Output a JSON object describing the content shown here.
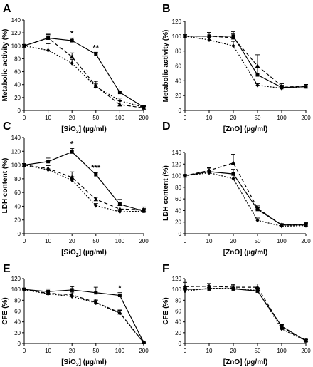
{
  "chart_data": [
    {
      "panel": "A",
      "type": "line",
      "x": [
        "0",
        "10",
        "20",
        "50",
        "100",
        "200"
      ],
      "xlabel": [
        "[SiO",
        "2",
        "] (µg/ml)"
      ],
      "ylabel": "Metabolic activity (%)",
      "ylim": [
        0,
        140
      ],
      "yticks": [
        "0",
        "20",
        "40",
        "60",
        "80",
        "100",
        "120",
        "140"
      ],
      "series": [
        {
          "style": "solid-square",
          "values": [
            100,
            112,
            108,
            87,
            28,
            5
          ],
          "errors": [
            2,
            6,
            4,
            3,
            10,
            2
          ]
        },
        {
          "style": "dash-triangle",
          "values": [
            100,
            112,
            83,
            38,
            9,
            4
          ],
          "errors": [
            2,
            5,
            6,
            7,
            6,
            2
          ]
        },
        {
          "style": "dot-diamond",
          "values": [
            100,
            93,
            73,
            37,
            15,
            5
          ],
          "errors": [
            2,
            10,
            6,
            4,
            4,
            2
          ]
        }
      ],
      "annotations": [
        {
          "x_index": 2,
          "text": "*"
        },
        {
          "x_index": 3,
          "text": "**"
        }
      ]
    },
    {
      "panel": "B",
      "type": "line",
      "x": [
        "0",
        "10",
        "20",
        "50",
        "100",
        "200"
      ],
      "xlabel": [
        "[ZnO] (µg/ml)"
      ],
      "ylabel": "Metabolic activity (%)",
      "ylim": [
        0,
        120
      ],
      "yticks": [
        "0",
        "20",
        "40",
        "60",
        "80",
        "100",
        "120"
      ],
      "series": [
        {
          "style": "solid-square",
          "values": [
            100,
            100,
            100,
            48,
            31,
            32
          ],
          "errors": [
            2,
            5,
            6,
            10,
            3,
            3
          ]
        },
        {
          "style": "dash-triangle",
          "values": [
            100,
            100,
            98,
            60,
            33,
            32
          ],
          "errors": [
            2,
            5,
            5,
            15,
            3,
            3
          ]
        },
        {
          "style": "dot-diamond",
          "values": [
            100,
            95,
            87,
            34,
            30,
            32
          ],
          "errors": [
            2,
            5,
            6,
            2,
            2,
            3
          ]
        }
      ],
      "annotations": []
    },
    {
      "panel": "C",
      "type": "line",
      "x": [
        "0",
        "10",
        "20",
        "50",
        "100",
        "200"
      ],
      "xlabel": [
        "[SiO",
        "2",
        "] (µg/ml)"
      ],
      "ylabel": "LDH content (%)",
      "ylim": [
        0,
        140
      ],
      "yticks": [
        "0",
        "20",
        "40",
        "60",
        "80",
        "100",
        "120",
        "140"
      ],
      "series": [
        {
          "style": "solid-square",
          "values": [
            100,
            105,
            119,
            86,
            43,
            33
          ],
          "errors": [
            2,
            5,
            5,
            3,
            7,
            4
          ]
        },
        {
          "style": "dash-triangle",
          "values": [
            100,
            95,
            82,
            50,
            36,
            35
          ],
          "errors": [
            2,
            4,
            8,
            3,
            5,
            4
          ]
        },
        {
          "style": "dot-diamond",
          "values": [
            100,
            93,
            78,
            41,
            32,
            33
          ],
          "errors": [
            2,
            4,
            5,
            3,
            3,
            3
          ]
        }
      ],
      "annotations": [
        {
          "x_index": 2,
          "text": "*"
        },
        {
          "x_index": 3,
          "text": "***"
        }
      ]
    },
    {
      "panel": "D",
      "type": "line",
      "x": [
        "0",
        "10",
        "20",
        "50",
        "100",
        "200"
      ],
      "xlabel": [
        "[ZnO] (µg/ml)"
      ],
      "ylabel": "LDH content (%)",
      "ylim": [
        0,
        140
      ],
      "yticks": [
        "0",
        "20",
        "40",
        "60",
        "80",
        "100",
        "120",
        "140"
      ],
      "series": [
        {
          "style": "solid-square",
          "values": [
            100,
            107,
            103,
            42,
            15,
            15
          ],
          "errors": [
            2,
            6,
            8,
            3,
            2,
            3
          ]
        },
        {
          "style": "dash-triangle",
          "values": [
            100,
            109,
            122,
            44,
            15,
            16
          ],
          "errors": [
            2,
            5,
            15,
            4,
            2,
            3
          ]
        },
        {
          "style": "dot-diamond",
          "values": [
            100,
            105,
            95,
            23,
            13,
            14
          ],
          "errors": [
            2,
            5,
            6,
            4,
            2,
            2
          ]
        }
      ],
      "annotations": []
    },
    {
      "panel": "E",
      "type": "line",
      "x": [
        "0",
        "10",
        "20",
        "50",
        "100",
        "200"
      ],
      "xlabel": [
        "[SiO",
        "2",
        "] (µg/ml)"
      ],
      "ylabel": "CFE (%)",
      "ylim": [
        0,
        120
      ],
      "yticks": [
        "0",
        "20",
        "40",
        "60",
        "80",
        "100",
        "120"
      ],
      "series": [
        {
          "style": "solid-square",
          "values": [
            100,
            96,
            99,
            94,
            89,
            2
          ],
          "errors": [
            2,
            5,
            6,
            10,
            5,
            2
          ]
        },
        {
          "style": "dash-triangle",
          "values": [
            100,
            93,
            90,
            76,
            57,
            2
          ],
          "errors": [
            2,
            4,
            5,
            6,
            5,
            2
          ]
        },
        {
          "style": "dot-diamond",
          "values": [
            99,
            92,
            87,
            75,
            56,
            1
          ],
          "errors": [
            2,
            4,
            5,
            5,
            5,
            1
          ]
        }
      ],
      "annotations": [
        {
          "x_index": 4,
          "text": "*"
        }
      ]
    },
    {
      "panel": "F",
      "type": "line",
      "x": [
        "0",
        "10",
        "20",
        "50",
        "100",
        "200"
      ],
      "xlabel": [
        "[ZnO] (µg/ml)"
      ],
      "ylabel": "CFE (%)",
      "ylim": [
        0,
        120
      ],
      "yticks": [
        "0",
        "20",
        "40",
        "60",
        "80",
        "100",
        "120"
      ],
      "series": [
        {
          "style": "solid-square",
          "values": [
            100,
            101,
            101,
            97,
            32,
            5
          ],
          "errors": [
            5,
            5,
            5,
            5,
            3,
            2
          ]
        },
        {
          "style": "dash-triangle",
          "values": [
            105,
            106,
            104,
            104,
            30,
            6
          ],
          "errors": [
            8,
            5,
            5,
            6,
            3,
            2
          ]
        },
        {
          "style": "dot-diamond",
          "values": [
            97,
            102,
            102,
            98,
            27,
            5
          ],
          "errors": [
            6,
            5,
            5,
            5,
            3,
            2
          ]
        }
      ],
      "annotations": []
    }
  ]
}
